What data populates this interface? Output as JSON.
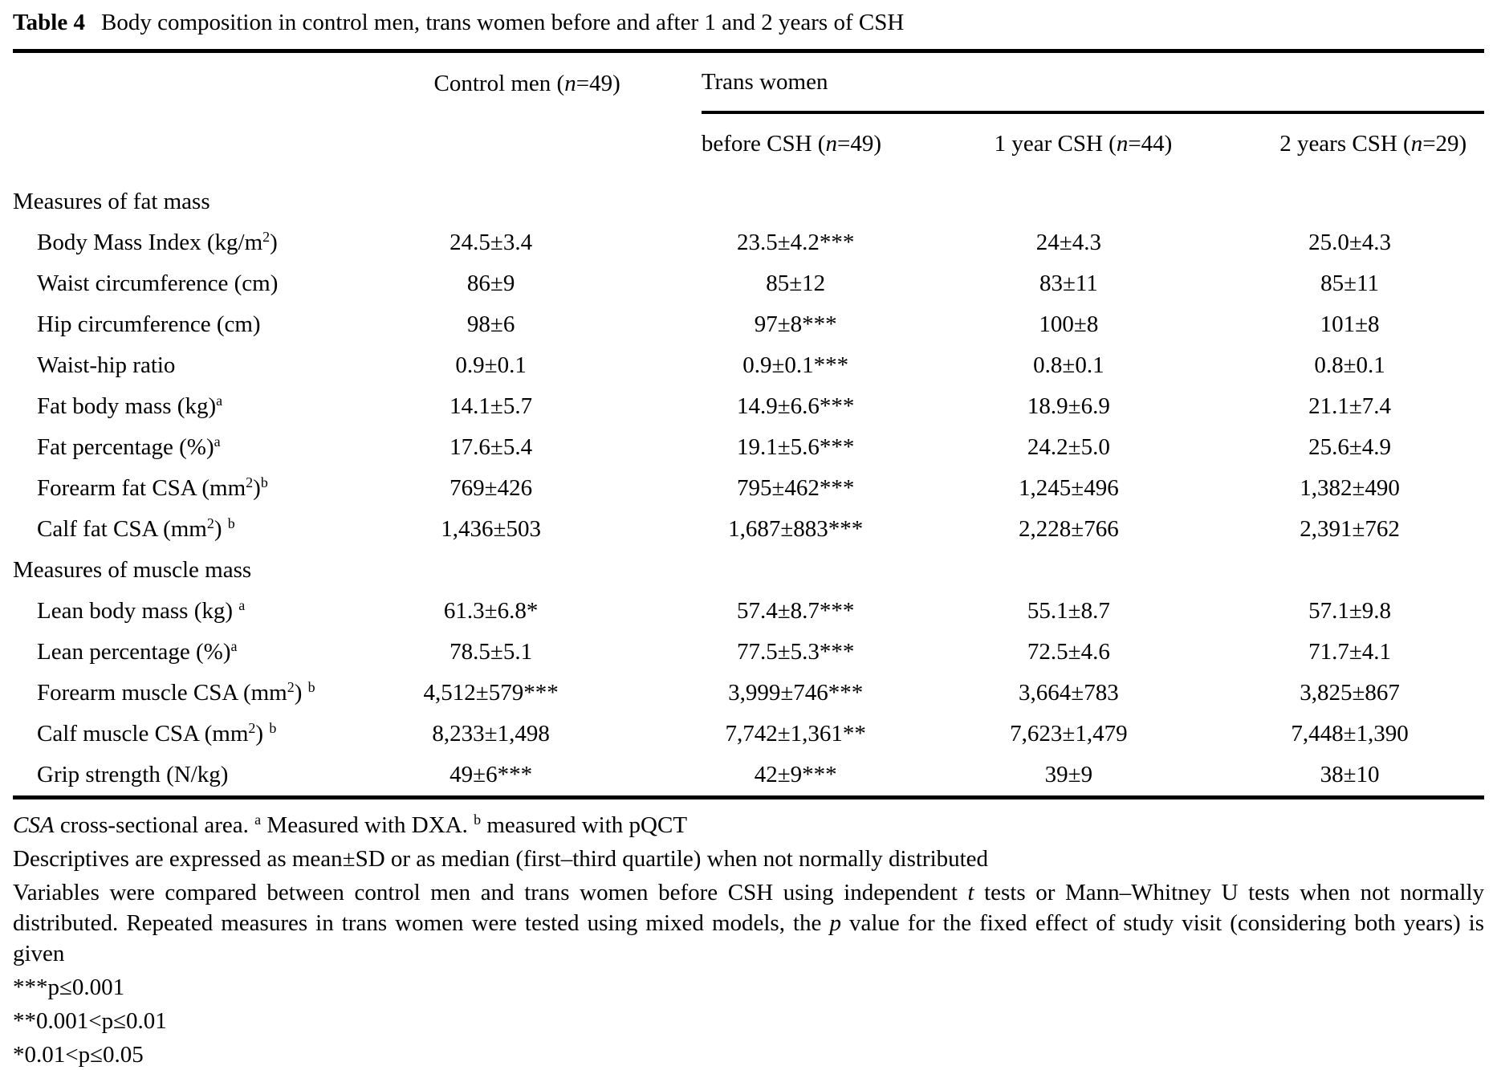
{
  "title": {
    "label": "Table 4",
    "text": "Body composition in control men, trans women before and after 1 and 2 years of CSH"
  },
  "table": {
    "group_headers": {
      "control": "Control men (//n//=49)",
      "trans": "Trans women"
    },
    "sub_headers": [
      "before CSH (//n//=49)",
      "1 year CSH (//n//=44)",
      "2 years CSH (//n//=29)"
    ],
    "rows": [
      {
        "type": "section",
        "label": "Measures of fat mass"
      },
      {
        "type": "data",
        "label": "Body Mass Index (kg/m^{2})",
        "values": [
          "24.5±3.4",
          "23.5±4.2***",
          "24±4.3",
          "25.0±4.3"
        ]
      },
      {
        "type": "data",
        "label": "Waist circumference (cm)",
        "values": [
          "86±9",
          "85±12",
          "83±11",
          "85±11"
        ]
      },
      {
        "type": "data",
        "label": "Hip circumference (cm)",
        "values": [
          "98±6",
          "97±8***",
          "100±8",
          "101±8"
        ]
      },
      {
        "type": "data",
        "label": "Waist-hip ratio",
        "values": [
          "0.9±0.1",
          "0.9±0.1***",
          "0.8±0.1",
          "0.8±0.1"
        ]
      },
      {
        "type": "data",
        "label": "Fat body mass (kg)^{a}",
        "values": [
          "14.1±5.7",
          "14.9±6.6***",
          "18.9±6.9",
          "21.1±7.4"
        ]
      },
      {
        "type": "data",
        "label": "Fat percentage (%)^{a}",
        "values": [
          "17.6±5.4",
          "19.1±5.6***",
          "24.2±5.0",
          "25.6±4.9"
        ]
      },
      {
        "type": "data",
        "label": "Forearm fat CSA (mm^{2})^{b}",
        "values": [
          "769±426",
          "795±462***",
          "1,245±496",
          "1,382±490"
        ]
      },
      {
        "type": "data",
        "label": "Calf fat CSA (mm^{2}) ^{b}",
        "values": [
          "1,436±503",
          "1,687±883***",
          "2,228±766",
          "2,391±762"
        ]
      },
      {
        "type": "section",
        "label": "Measures of muscle mass"
      },
      {
        "type": "data",
        "label": "Lean body mass (kg) ^{a}",
        "values": [
          "61.3±6.8*",
          "57.4±8.7***",
          "55.1±8.7",
          "57.1±9.8"
        ]
      },
      {
        "type": "data",
        "label": "Lean percentage (%)^{a}",
        "values": [
          "78.5±5.1",
          "77.5±5.3***",
          "72.5±4.6",
          "71.7±4.1"
        ]
      },
      {
        "type": "data",
        "label": "Forearm muscle CSA (mm^{2}) ^{b}",
        "values": [
          "4,512±579***",
          "3,999±746***",
          "3,664±783",
          "3,825±867"
        ]
      },
      {
        "type": "data",
        "label": "Calf muscle CSA (mm^{2}) ^{b}",
        "values": [
          "8,233±1,498",
          "7,742±1,361**",
          "7,623±1,479",
          "7,448±1,390"
        ]
      },
      {
        "type": "data",
        "label": "Grip strength (N/kg)",
        "values": [
          "49±6***",
          "42±9***",
          "39±9",
          "38±10"
        ]
      }
    ]
  },
  "footnotes": [
    "//CSA// cross-sectional area. ^{a} Measured with DXA. ^{b} measured with pQCT",
    "Descriptives are expressed as mean±SD or as median (first–third quartile) when not normally distributed",
    "Variables were compared between control men and trans women before CSH using independent //t// tests or Mann–Whitney U tests when not normally distributed. Repeated measures in trans women were tested using mixed models, the //p// value for the fixed effect of study visit (considering both years) is given"
  ],
  "significance": [
    "***p≤0.001",
    "**0.001<p≤0.01",
    "*0.01<p≤0.05"
  ]
}
